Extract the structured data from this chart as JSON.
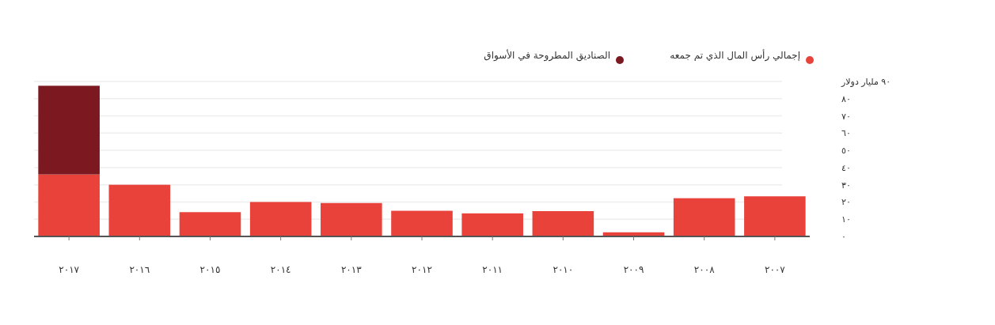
{
  "chart_data": {
    "type": "bar",
    "stacked": true,
    "categories": [
      "٢٠١٧",
      "٢٠١٦",
      "٢٠١٥",
      "٢٠١٤",
      "٢٠١٣",
      "٢٠١٢",
      "٢٠١١",
      "٢٠١٠",
      "٢٠٠٩",
      "٢٠٠٨",
      "٢٠٠٧"
    ],
    "series": [
      {
        "name": "إجمالي رأس المال الذي تم جمعه",
        "color": "#e8423b",
        "values": [
          36,
          30,
          14.1,
          20,
          19.4,
          14.9,
          13.4,
          14.7,
          2.4,
          22.2,
          23.3
        ]
      },
      {
        "name": "الصناديق المطروحة في الأسواق",
        "color": "#7b1820",
        "values": [
          51.5,
          null,
          null,
          null,
          null,
          null,
          null,
          null,
          null,
          null,
          null
        ]
      }
    ],
    "ylim": [
      0,
      90
    ],
    "yticks": [
      {
        "value": 0,
        "label": "٠"
      },
      {
        "value": 10,
        "label": "١٠"
      },
      {
        "value": 20,
        "label": "٢٠"
      },
      {
        "value": 30,
        "label": "٣٠"
      },
      {
        "value": 40,
        "label": "٤٠"
      },
      {
        "value": 50,
        "label": "٥٠"
      },
      {
        "value": 60,
        "label": "٦٠"
      },
      {
        "value": 70,
        "label": "٧٠"
      },
      {
        "value": 80,
        "label": "٨٠"
      },
      {
        "value": 90,
        "label": "٩٠ مليار دولار"
      }
    ],
    "grid": true,
    "legend": "top right"
  }
}
